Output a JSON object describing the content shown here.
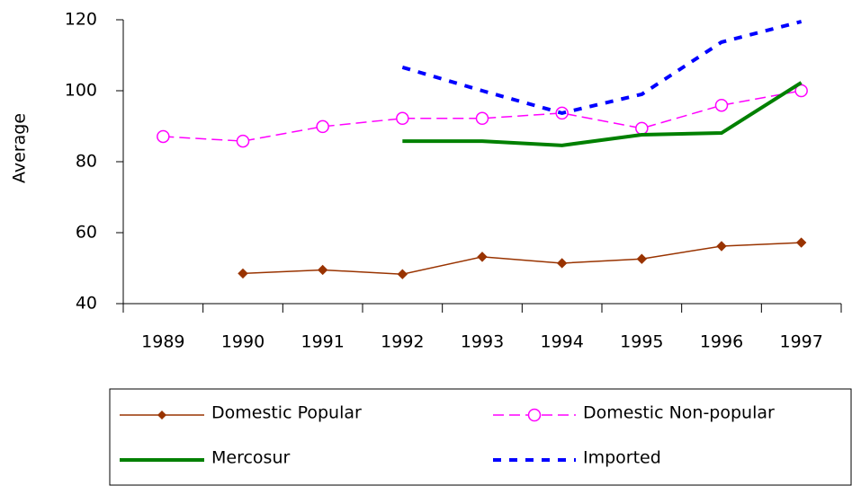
{
  "chart_data": {
    "type": "line",
    "y_label": "Average",
    "categories": [
      "1989",
      "1990",
      "1991",
      "1992",
      "1993",
      "1994",
      "1995",
      "1996",
      "1997"
    ],
    "ylim": [
      40,
      120
    ],
    "yticks": [
      40,
      60,
      80,
      100,
      120
    ],
    "series": [
      {
        "name": "Domestic Popular",
        "color": "#993300",
        "marker": "diamond",
        "dash": "solid",
        "width": 1.5,
        "values": [
          null,
          48.5,
          49.5,
          48.3,
          53.2,
          51.4,
          52.6,
          56.2,
          57.2
        ]
      },
      {
        "name": "Domestic Non-popular",
        "color": "#ff00ff",
        "marker": "circle",
        "dash": "dashed",
        "width": 1.5,
        "values": [
          87.1,
          85.8,
          89.9,
          92.2,
          92.2,
          93.7,
          89.4,
          95.9,
          100
        ]
      },
      {
        "name": "Mercosur",
        "color": "#008000",
        "marker": "none",
        "dash": "solid",
        "width": 4,
        "values": [
          null,
          null,
          null,
          85.8,
          85.8,
          84.6,
          87.6,
          88.1,
          102.3
        ]
      },
      {
        "name": "Imported",
        "color": "#0000ff",
        "marker": "none",
        "dash": "dotted",
        "width": 4,
        "values": [
          null,
          null,
          null,
          106.6,
          100,
          93.7,
          99,
          113.7,
          119.5
        ]
      }
    ]
  }
}
